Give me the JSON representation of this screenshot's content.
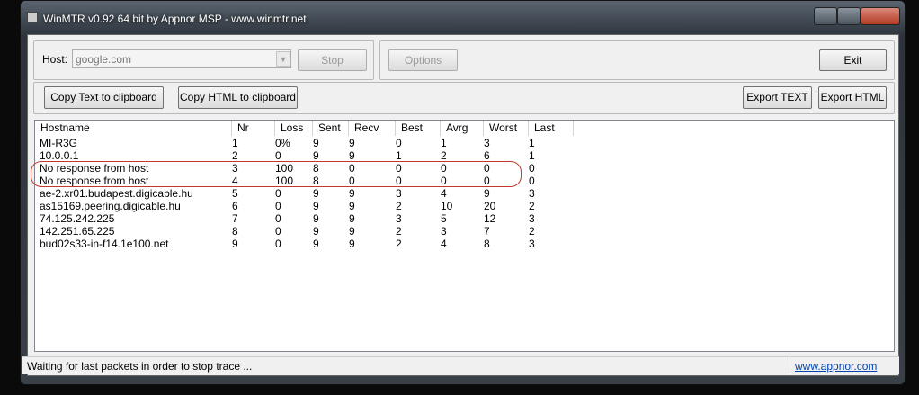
{
  "window": {
    "title": "WinMTR v0.92 64 bit by Appnor MSP - www.winmtr.net"
  },
  "toolbar": {
    "host_label": "Host:",
    "host_value": "google.com",
    "stop": "Stop",
    "options": "Options",
    "exit": "Exit",
    "copy_text": "Copy Text to clipboard",
    "copy_html": "Copy HTML to clipboard",
    "export_text": "Export TEXT",
    "export_html": "Export HTML"
  },
  "table": {
    "headers": [
      "Hostname",
      "Nr",
      "Loss %",
      "Sent",
      "Recv",
      "Best",
      "Avrg",
      "Worst",
      "Last"
    ],
    "rows": [
      [
        "MI-R3G",
        1,
        0,
        9,
        9,
        0,
        1,
        3,
        1
      ],
      [
        "10.0.0.1",
        2,
        0,
        9,
        9,
        1,
        2,
        6,
        1
      ],
      [
        "No response from host",
        3,
        100,
        8,
        0,
        0,
        0,
        0,
        0
      ],
      [
        "No response from host",
        4,
        100,
        8,
        0,
        0,
        0,
        0,
        0
      ],
      [
        "ae-2.xr01.budapest.digicable.hu",
        5,
        0,
        9,
        9,
        3,
        4,
        9,
        3
      ],
      [
        "as15169.peering.digicable.hu",
        6,
        0,
        9,
        9,
        2,
        10,
        20,
        2
      ],
      [
        "74.125.242.225",
        7,
        0,
        9,
        9,
        3,
        5,
        12,
        3
      ],
      [
        "142.251.65.225",
        8,
        0,
        9,
        9,
        2,
        3,
        7,
        2
      ],
      [
        "bud02s33-in-f14.1e100.net",
        9,
        0,
        9,
        9,
        2,
        4,
        8,
        3
      ]
    ]
  },
  "status": {
    "message": "Waiting for last packets in order to stop trace ...",
    "link": "www.appnor.com"
  }
}
